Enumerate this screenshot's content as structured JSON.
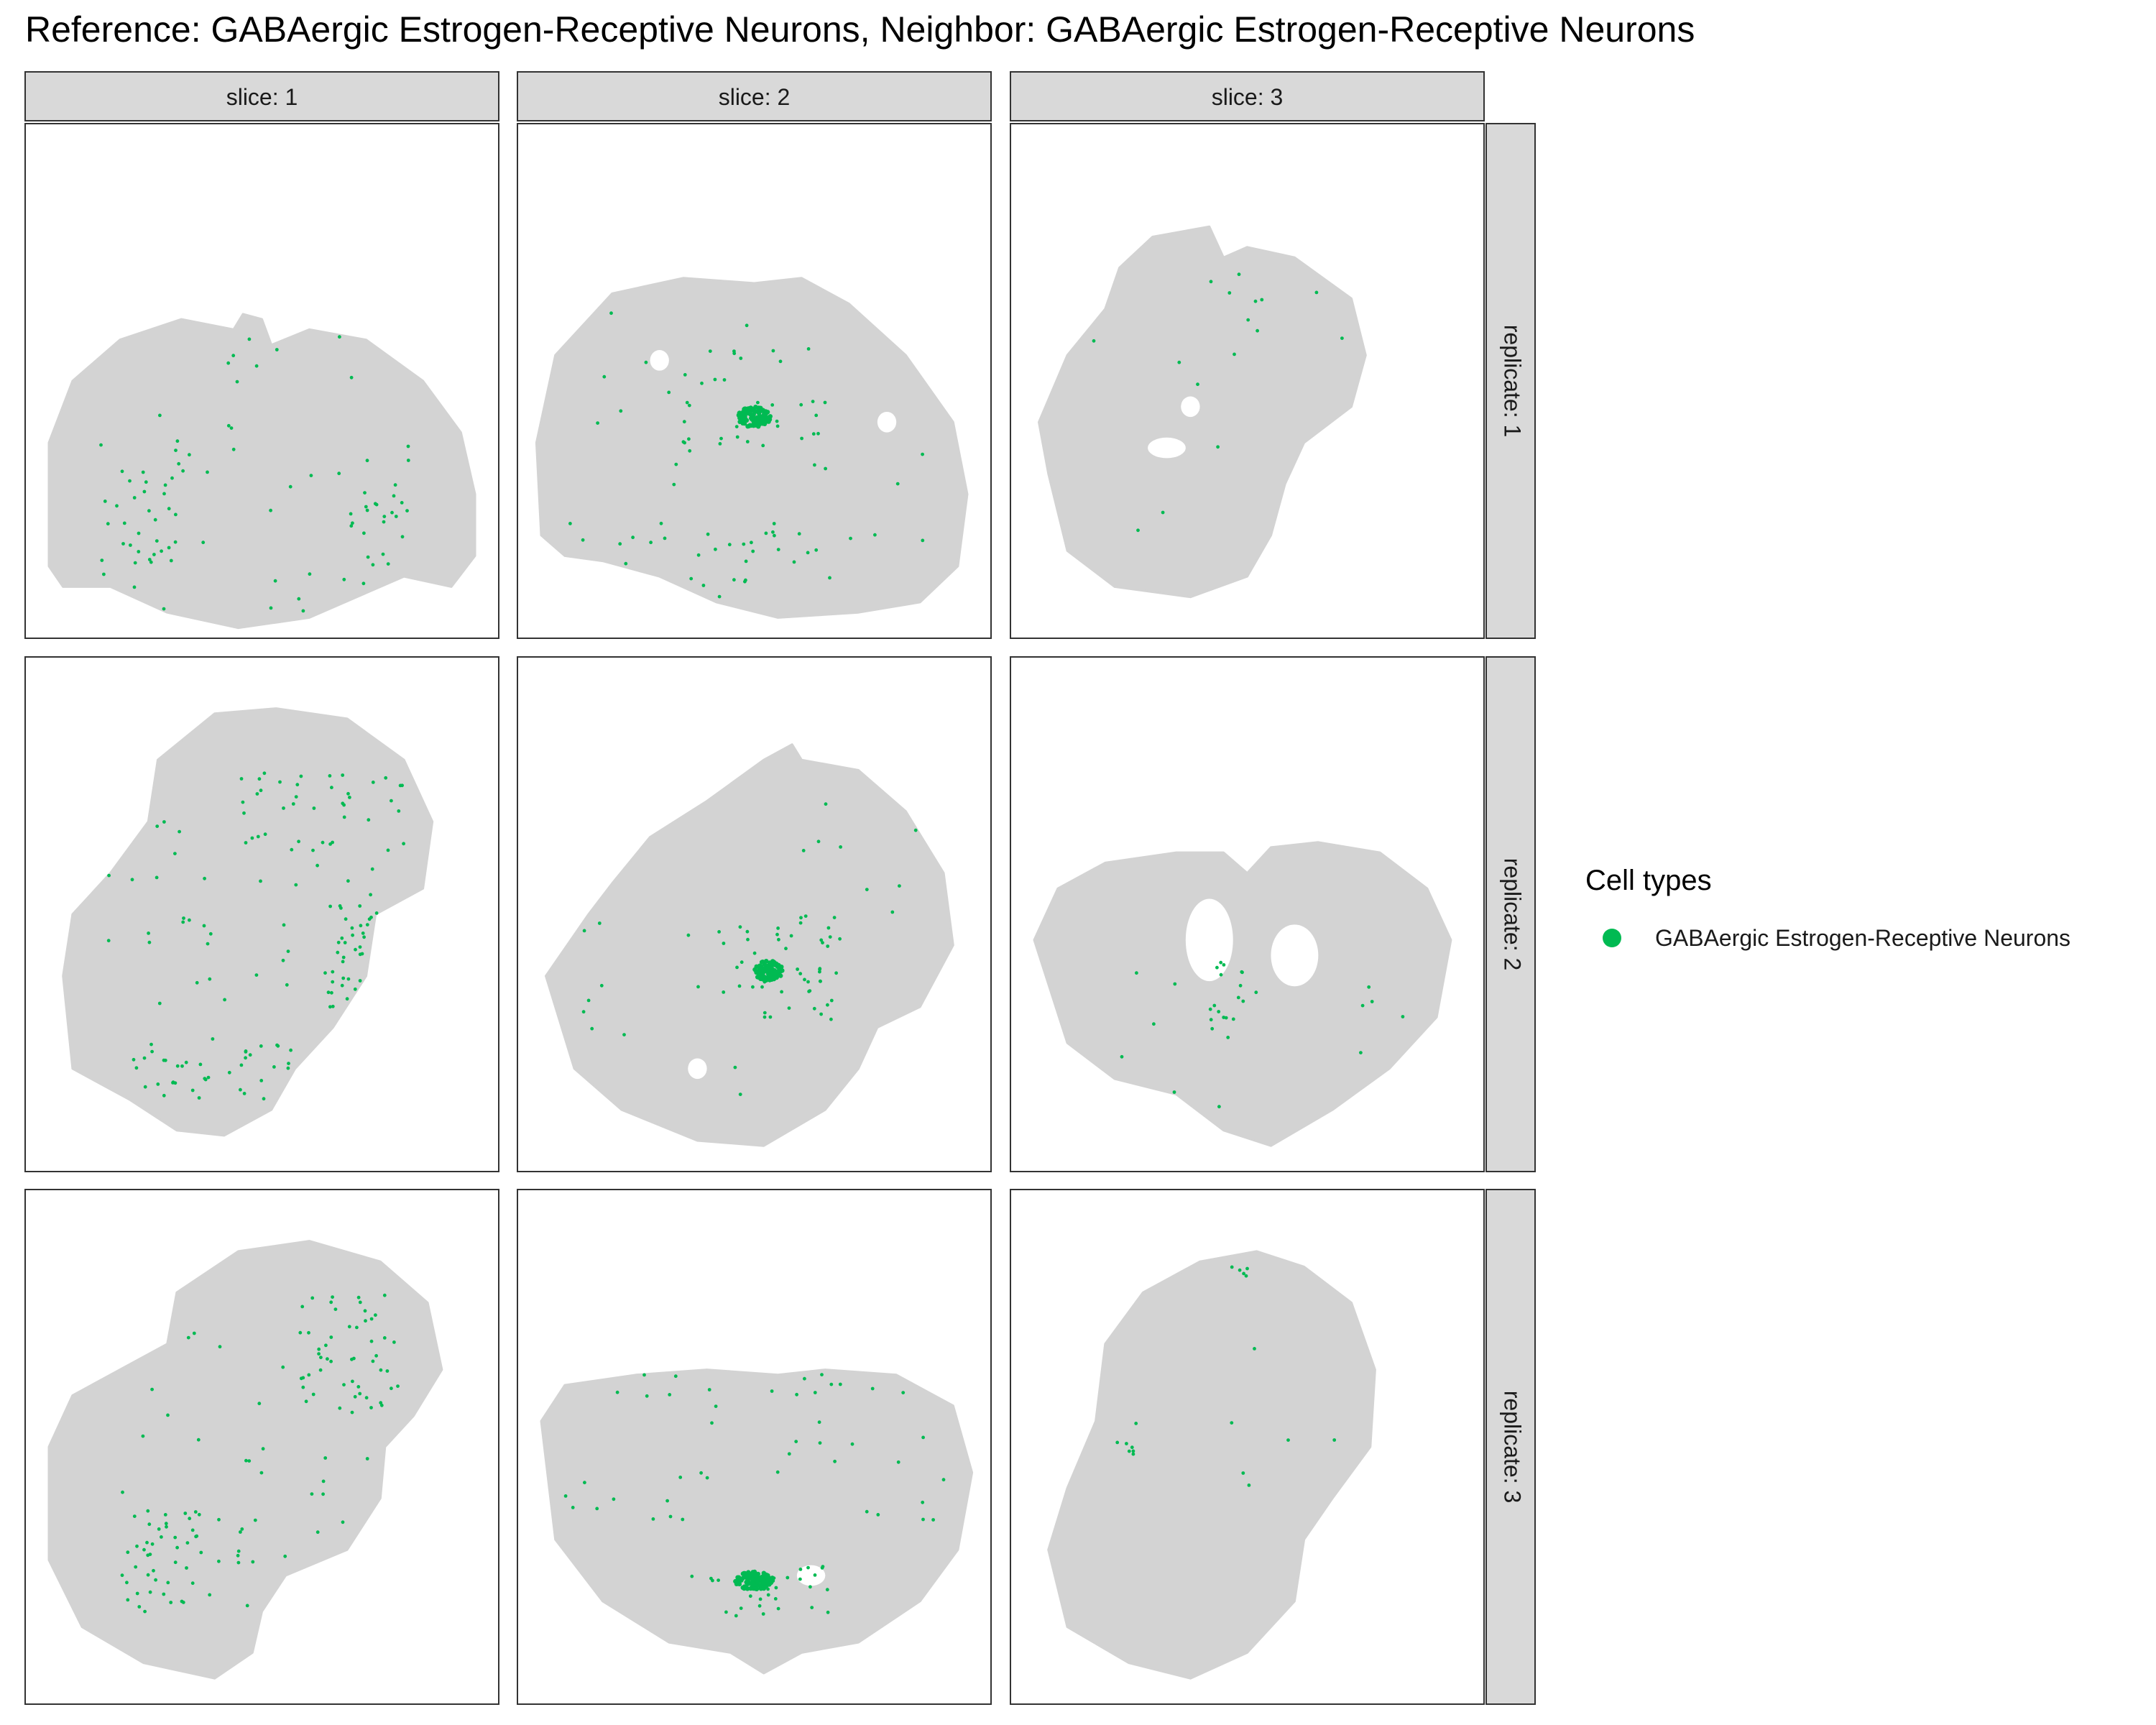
{
  "chart_data": {
    "type": "scatter",
    "title": "Reference: GABAergic Estrogen-Receptive Neurons, Neighbor: GABAergic Estrogen-Receptive Neurons",
    "column_strips": [
      "slice: 1",
      "slice: 2",
      "slice: 3"
    ],
    "row_strips": [
      "replicate: 1",
      "replicate: 2",
      "replicate: 3"
    ],
    "legend": {
      "title": "Cell types",
      "entries": [
        {
          "label": "GABAergic Estrogen-Receptive Neurons",
          "color": "#00BA52"
        }
      ]
    },
    "colors": {
      "highlight": "#00BA52",
      "background_cells": "#D3D3D3",
      "strip_fill": "#D9D9D9",
      "panel_border": "#333333"
    },
    "x_axis": "none",
    "y_axis": "none",
    "grid": false,
    "legend_position": "right",
    "series_note": "grey = all other cells in the tissue section; green = highlighted cell type",
    "panels": [
      {
        "row": 0,
        "col": 0,
        "outline": [
          [
            0.05,
            0.86
          ],
          [
            0.05,
            0.62
          ],
          [
            0.1,
            0.5
          ],
          [
            0.2,
            0.42
          ],
          [
            0.33,
            0.38
          ],
          [
            0.44,
            0.4
          ],
          [
            0.46,
            0.37
          ],
          [
            0.5,
            0.38
          ],
          [
            0.52,
            0.43
          ],
          [
            0.6,
            0.4
          ],
          [
            0.72,
            0.42
          ],
          [
            0.84,
            0.5
          ],
          [
            0.92,
            0.6
          ],
          [
            0.95,
            0.72
          ],
          [
            0.95,
            0.84
          ],
          [
            0.9,
            0.9
          ],
          [
            0.8,
            0.88
          ],
          [
            0.7,
            0.92
          ],
          [
            0.6,
            0.96
          ],
          [
            0.45,
            0.98
          ],
          [
            0.3,
            0.95
          ],
          [
            0.18,
            0.9
          ],
          [
            0.08,
            0.9
          ]
        ],
        "holes": [],
        "clusters": [],
        "scatter": {
          "n": 90,
          "seed": 11,
          "zones": [
            [
              0.27,
              0.73,
              0.11,
              0.12
            ],
            [
              0.74,
              0.74,
              0.07,
              0.12
            ],
            [
              0.5,
              0.6,
              0.3,
              0.2
            ],
            [
              0.45,
              0.9,
              0.3,
              0.05
            ]
          ]
        }
      },
      {
        "row": 0,
        "col": 1,
        "outline": [
          [
            0.05,
            0.8
          ],
          [
            0.04,
            0.62
          ],
          [
            0.08,
            0.45
          ],
          [
            0.2,
            0.33
          ],
          [
            0.35,
            0.3
          ],
          [
            0.5,
            0.31
          ],
          [
            0.6,
            0.3
          ],
          [
            0.7,
            0.35
          ],
          [
            0.82,
            0.45
          ],
          [
            0.92,
            0.58
          ],
          [
            0.95,
            0.72
          ],
          [
            0.93,
            0.86
          ],
          [
            0.85,
            0.93
          ],
          [
            0.72,
            0.95
          ],
          [
            0.55,
            0.96
          ],
          [
            0.42,
            0.93
          ],
          [
            0.3,
            0.88
          ],
          [
            0.18,
            0.85
          ],
          [
            0.1,
            0.84
          ]
        ],
        "holes": [
          [
            0.3,
            0.46,
            0.02,
            0.02
          ],
          [
            0.78,
            0.58,
            0.02,
            0.02
          ]
        ],
        "clusters": [
          [
            0.5,
            0.57,
            0.035,
            0.02,
            110
          ]
        ],
        "scatter": {
          "n": 85,
          "seed": 23,
          "zones": [
            [
              0.5,
              0.52,
              0.15,
              0.12
            ],
            [
              0.48,
              0.86,
              0.28,
              0.07
            ],
            [
              0.5,
              0.6,
              0.4,
              0.3
            ]
          ]
        }
      },
      {
        "row": 0,
        "col": 2,
        "outline": [
          [
            0.08,
            0.68
          ],
          [
            0.06,
            0.58
          ],
          [
            0.12,
            0.45
          ],
          [
            0.2,
            0.36
          ],
          [
            0.23,
            0.28
          ],
          [
            0.3,
            0.22
          ],
          [
            0.42,
            0.2
          ],
          [
            0.45,
            0.26
          ],
          [
            0.5,
            0.24
          ],
          [
            0.6,
            0.26
          ],
          [
            0.72,
            0.34
          ],
          [
            0.75,
            0.45
          ],
          [
            0.72,
            0.55
          ],
          [
            0.62,
            0.62
          ],
          [
            0.58,
            0.7
          ],
          [
            0.55,
            0.8
          ],
          [
            0.5,
            0.88
          ],
          [
            0.38,
            0.92
          ],
          [
            0.22,
            0.9
          ],
          [
            0.12,
            0.83
          ]
        ],
        "holes": [
          [
            0.33,
            0.63,
            0.04,
            0.02
          ],
          [
            0.38,
            0.55,
            0.02,
            0.02
          ]
        ],
        "clusters": [],
        "scatter": {
          "n": 16,
          "seed": 37,
          "zones": [
            [
              0.45,
              0.55,
              0.3,
              0.3
            ],
            [
              0.28,
              0.93,
              0.06,
              0.02
            ]
          ]
        }
      },
      {
        "row": 1,
        "col": 0,
        "outline": [
          [
            0.08,
            0.62
          ],
          [
            0.1,
            0.5
          ],
          [
            0.18,
            0.42
          ],
          [
            0.26,
            0.32
          ],
          [
            0.28,
            0.2
          ],
          [
            0.4,
            0.11
          ],
          [
            0.53,
            0.1
          ],
          [
            0.68,
            0.12
          ],
          [
            0.8,
            0.2
          ],
          [
            0.86,
            0.32
          ],
          [
            0.84,
            0.45
          ],
          [
            0.74,
            0.5
          ],
          [
            0.72,
            0.62
          ],
          [
            0.65,
            0.72
          ],
          [
            0.57,
            0.8
          ],
          [
            0.52,
            0.88
          ],
          [
            0.42,
            0.93
          ],
          [
            0.32,
            0.92
          ],
          [
            0.22,
            0.86
          ],
          [
            0.1,
            0.8
          ]
        ],
        "holes": [],
        "clusters": [],
        "scatter": {
          "n": 150,
          "seed": 41,
          "zones": [
            [
              0.4,
              0.8,
              0.18,
              0.06
            ],
            [
              0.62,
              0.3,
              0.18,
              0.08
            ],
            [
              0.7,
              0.58,
              0.06,
              0.1
            ],
            [
              0.45,
              0.5,
              0.3,
              0.2
            ]
          ]
        }
      },
      {
        "row": 1,
        "col": 1,
        "outline": [
          [
            0.06,
            0.62
          ],
          [
            0.15,
            0.5
          ],
          [
            0.2,
            0.44
          ],
          [
            0.28,
            0.35
          ],
          [
            0.4,
            0.28
          ],
          [
            0.52,
            0.2
          ],
          [
            0.58,
            0.17
          ],
          [
            0.6,
            0.2
          ],
          [
            0.72,
            0.22
          ],
          [
            0.82,
            0.3
          ],
          [
            0.9,
            0.42
          ],
          [
            0.92,
            0.56
          ],
          [
            0.85,
            0.68
          ],
          [
            0.76,
            0.72
          ],
          [
            0.72,
            0.8
          ],
          [
            0.65,
            0.88
          ],
          [
            0.52,
            0.95
          ],
          [
            0.38,
            0.94
          ],
          [
            0.22,
            0.88
          ],
          [
            0.12,
            0.8
          ]
        ],
        "holes": [
          [
            0.38,
            0.8,
            0.02,
            0.02
          ]
        ],
        "clusters": [
          [
            0.53,
            0.61,
            0.03,
            0.02,
            110
          ]
        ],
        "scatter": {
          "n": 70,
          "seed": 53,
          "zones": [
            [
              0.55,
              0.6,
              0.12,
              0.1
            ],
            [
              0.5,
              0.5,
              0.4,
              0.35
            ]
          ]
        }
      },
      {
        "row": 1,
        "col": 2,
        "outline": [
          [
            0.05,
            0.55
          ],
          [
            0.1,
            0.45
          ],
          [
            0.2,
            0.4
          ],
          [
            0.35,
            0.38
          ],
          [
            0.45,
            0.38
          ],
          [
            0.5,
            0.42
          ],
          [
            0.55,
            0.37
          ],
          [
            0.65,
            0.36
          ],
          [
            0.78,
            0.38
          ],
          [
            0.88,
            0.45
          ],
          [
            0.93,
            0.55
          ],
          [
            0.9,
            0.7
          ],
          [
            0.8,
            0.8
          ],
          [
            0.68,
            0.88
          ],
          [
            0.55,
            0.95
          ],
          [
            0.45,
            0.92
          ],
          [
            0.35,
            0.85
          ],
          [
            0.22,
            0.82
          ],
          [
            0.12,
            0.75
          ]
        ],
        "holes": [
          [
            0.42,
            0.55,
            0.05,
            0.08
          ],
          [
            0.6,
            0.58,
            0.05,
            0.06
          ]
        ],
        "clusters": [],
        "scatter": {
          "n": 30,
          "seed": 67,
          "zones": [
            [
              0.47,
              0.67,
              0.05,
              0.08
            ],
            [
              0.5,
              0.75,
              0.35,
              0.15
            ]
          ]
        }
      },
      {
        "row": 2,
        "col": 0,
        "outline": [
          [
            0.05,
            0.5
          ],
          [
            0.1,
            0.4
          ],
          [
            0.2,
            0.35
          ],
          [
            0.3,
            0.3
          ],
          [
            0.32,
            0.2
          ],
          [
            0.45,
            0.12
          ],
          [
            0.6,
            0.1
          ],
          [
            0.75,
            0.14
          ],
          [
            0.85,
            0.22
          ],
          [
            0.88,
            0.35
          ],
          [
            0.82,
            0.44
          ],
          [
            0.76,
            0.5
          ],
          [
            0.75,
            0.6
          ],
          [
            0.68,
            0.7
          ],
          [
            0.55,
            0.75
          ],
          [
            0.5,
            0.82
          ],
          [
            0.48,
            0.9
          ],
          [
            0.4,
            0.95
          ],
          [
            0.25,
            0.92
          ],
          [
            0.12,
            0.85
          ],
          [
            0.05,
            0.72
          ]
        ],
        "holes": [],
        "clusters": [],
        "scatter": {
          "n": 130,
          "seed": 79,
          "zones": [
            [
              0.35,
              0.72,
              0.14,
              0.1
            ],
            [
              0.68,
              0.32,
              0.1,
              0.12
            ],
            [
              0.5,
              0.5,
              0.3,
              0.25
            ]
          ]
        }
      },
      {
        "row": 2,
        "col": 1,
        "outline": [
          [
            0.05,
            0.45
          ],
          [
            0.1,
            0.38
          ],
          [
            0.25,
            0.36
          ],
          [
            0.4,
            0.35
          ],
          [
            0.55,
            0.36
          ],
          [
            0.65,
            0.35
          ],
          [
            0.8,
            0.36
          ],
          [
            0.92,
            0.42
          ],
          [
            0.96,
            0.55
          ],
          [
            0.93,
            0.7
          ],
          [
            0.85,
            0.8
          ],
          [
            0.72,
            0.88
          ],
          [
            0.6,
            0.9
          ],
          [
            0.52,
            0.94
          ],
          [
            0.45,
            0.9
          ],
          [
            0.32,
            0.88
          ],
          [
            0.18,
            0.8
          ],
          [
            0.08,
            0.68
          ]
        ],
        "holes": [
          [
            0.62,
            0.75,
            0.03,
            0.02
          ]
        ],
        "clusters": [
          [
            0.5,
            0.76,
            0.04,
            0.018,
            120
          ]
        ],
        "scatter": {
          "n": 75,
          "seed": 97,
          "zones": [
            [
              0.5,
              0.78,
              0.16,
              0.05
            ],
            [
              0.5,
              0.5,
              0.4,
              0.15
            ]
          ]
        }
      },
      {
        "row": 2,
        "col": 2,
        "outline": [
          [
            0.08,
            0.7
          ],
          [
            0.12,
            0.58
          ],
          [
            0.18,
            0.45
          ],
          [
            0.2,
            0.3
          ],
          [
            0.28,
            0.2
          ],
          [
            0.4,
            0.14
          ],
          [
            0.52,
            0.12
          ],
          [
            0.62,
            0.15
          ],
          [
            0.72,
            0.22
          ],
          [
            0.77,
            0.35
          ],
          [
            0.76,
            0.5
          ],
          [
            0.68,
            0.6
          ],
          [
            0.62,
            0.68
          ],
          [
            0.6,
            0.8
          ],
          [
            0.5,
            0.9
          ],
          [
            0.38,
            0.95
          ],
          [
            0.25,
            0.92
          ],
          [
            0.12,
            0.85
          ]
        ],
        "holes": [],
        "clusters": [],
        "scatter": {
          "n": 18,
          "seed": 103,
          "zones": [
            [
              0.24,
              0.5,
              0.02,
              0.02
            ],
            [
              0.5,
              0.4,
              0.25,
              0.2
            ],
            [
              0.4,
              0.15,
              0.1,
              0.02
            ]
          ]
        }
      }
    ]
  }
}
